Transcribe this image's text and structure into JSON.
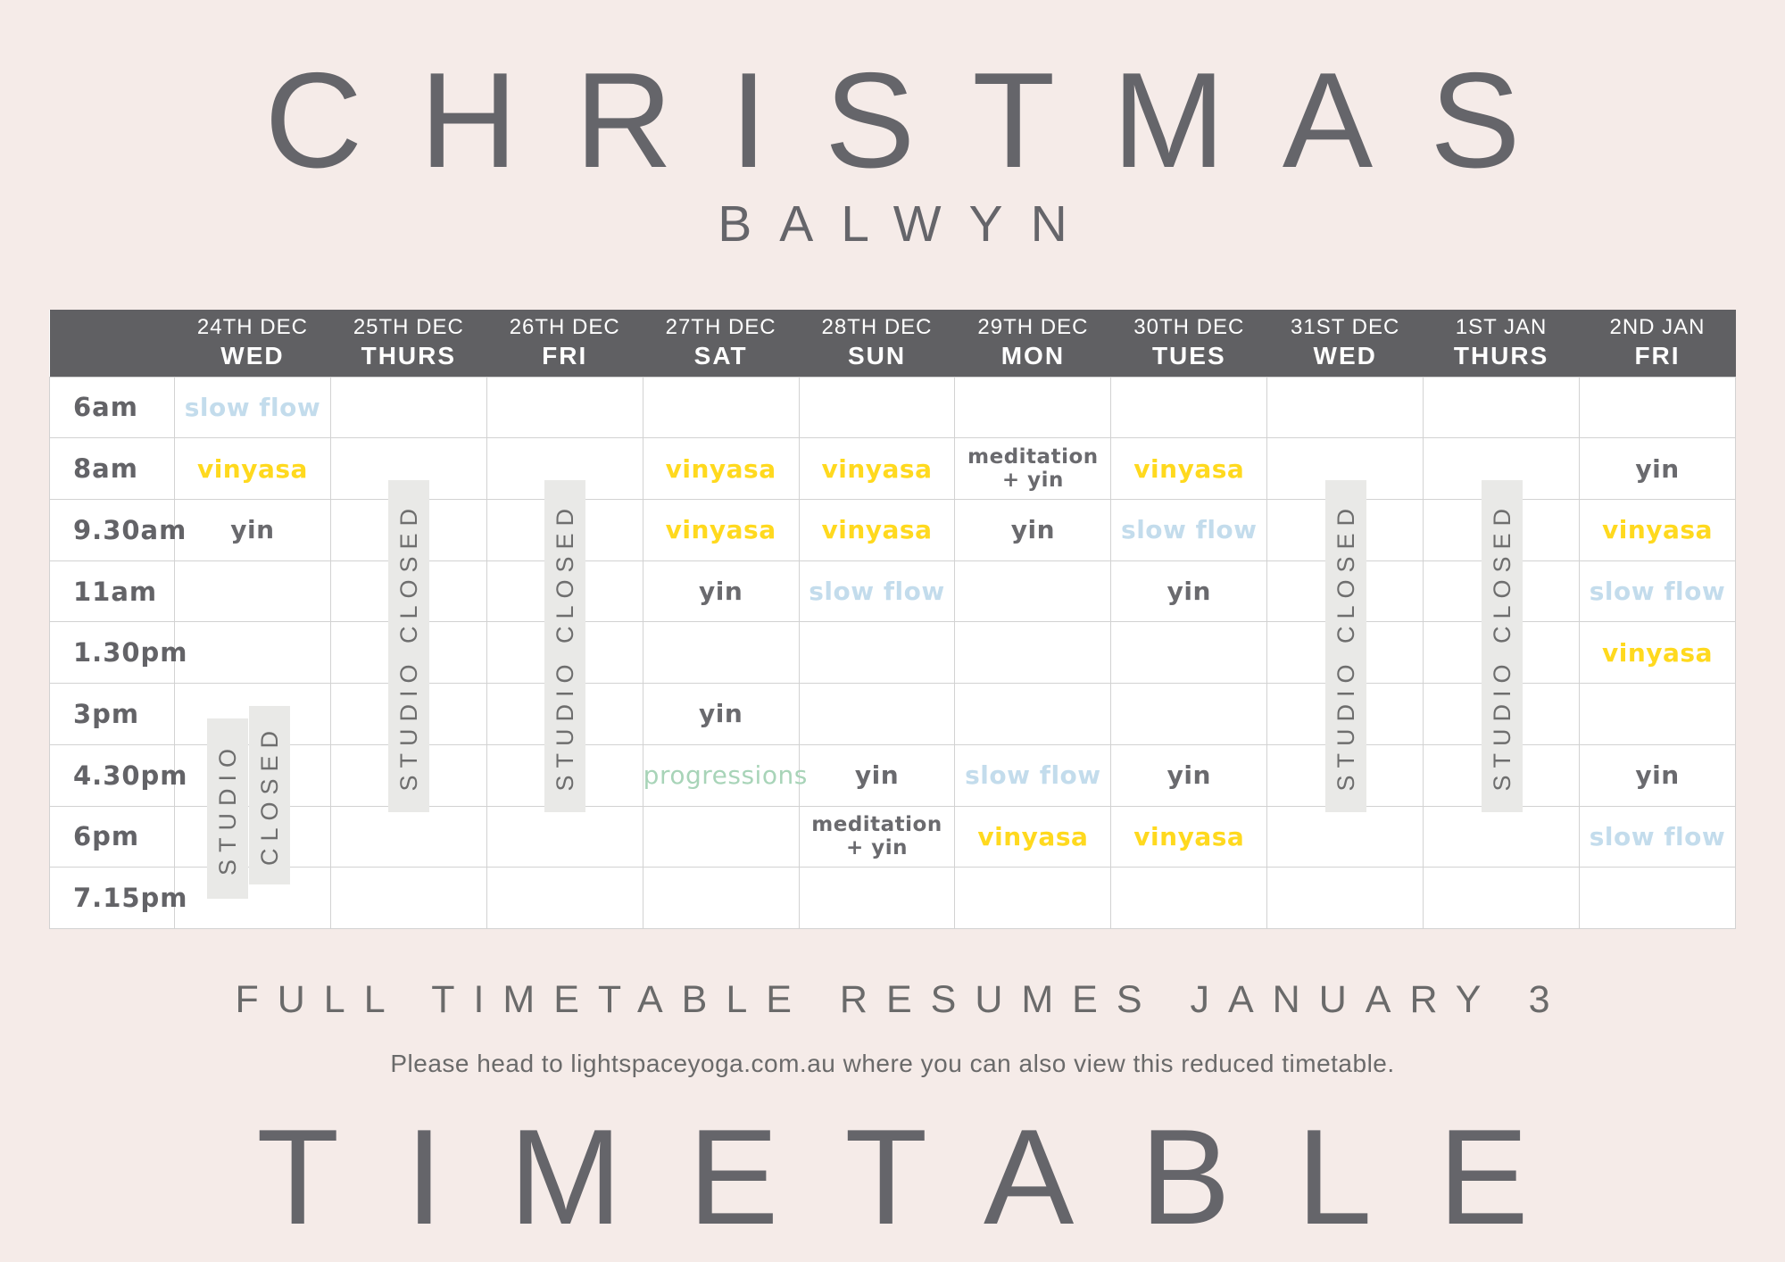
{
  "title": "CHRISTMAS",
  "subtitle": "BALWYN",
  "footer": {
    "line1": "FULL TIMETABLE RESUMES JANUARY 3",
    "line2": "Please head to lightspaceyoga.com.au where you can also view this reduced timetable.",
    "big_text": "TIMETABLE"
  },
  "closed": {
    "label": "STUDIO CLOSED",
    "word_first": "STUDIO",
    "word_second": "CLOSED",
    "full_columns": [
      1,
      2,
      7,
      8
    ],
    "partial_column": 0
  },
  "colors": {
    "background": "#f5ebe8",
    "header_bg": "#606063",
    "header_text": "#ffffff",
    "grid_line": "#d2d2d2",
    "closed_strip_bg": "#e9e9e7",
    "closed_text": "#6e6e6e",
    "title_text": "#65656a"
  },
  "class_styles": {
    "slow flow": {
      "color": "#c3dcec",
      "weight": 700
    },
    "vinyasa": {
      "color": "#ffd91e",
      "weight": 700
    },
    "yin": {
      "color": "#6a6a6e",
      "weight": 700
    },
    "meditation + yin": {
      "color": "#6a6a6e",
      "weight": 700
    },
    "progressions": {
      "color": "#a8d4b8",
      "weight": 500
    }
  },
  "timetable": {
    "columns": [
      {
        "date": "24TH DEC",
        "day": "WED"
      },
      {
        "date": "25TH DEC",
        "day": "THURS"
      },
      {
        "date": "26TH DEC",
        "day": "FRI"
      },
      {
        "date": "27TH DEC",
        "day": "SAT"
      },
      {
        "date": "28TH DEC",
        "day": "SUN"
      },
      {
        "date": "29TH DEC",
        "day": "MON"
      },
      {
        "date": "30TH DEC",
        "day": "TUES"
      },
      {
        "date": "31ST DEC",
        "day": "WED"
      },
      {
        "date": "1ST JAN",
        "day": "THURS"
      },
      {
        "date": "2ND JAN",
        "day": "FRI"
      }
    ],
    "times": [
      "6am",
      "8am",
      "9.30am",
      "11am",
      "1.30pm",
      "3pm",
      "4.30pm",
      "6pm",
      "7.15pm"
    ],
    "rows": [
      [
        "slow flow",
        "",
        "",
        "",
        "",
        "",
        "",
        "",
        "",
        ""
      ],
      [
        "vinyasa",
        "",
        "",
        "vinyasa",
        "vinyasa",
        "meditation + yin",
        "vinyasa",
        "",
        "",
        "yin"
      ],
      [
        "yin",
        "",
        "",
        "vinyasa",
        "vinyasa",
        "yin",
        "slow flow",
        "",
        "",
        "vinyasa"
      ],
      [
        "",
        "",
        "",
        "yin",
        "slow flow",
        "",
        "yin",
        "",
        "",
        "slow flow"
      ],
      [
        "",
        "",
        "",
        "",
        "",
        "",
        "",
        "",
        "",
        "vinyasa"
      ],
      [
        "",
        "",
        "",
        "yin",
        "",
        "",
        "",
        "",
        "",
        ""
      ],
      [
        "",
        "",
        "",
        "progressions",
        "yin",
        "slow flow",
        "yin",
        "",
        "",
        "yin"
      ],
      [
        "",
        "",
        "",
        "",
        "meditation + yin",
        "vinyasa",
        "vinyasa",
        "",
        "",
        "slow flow"
      ],
      [
        "",
        "",
        "",
        "",
        "",
        "",
        "",
        "",
        "",
        ""
      ]
    ]
  }
}
